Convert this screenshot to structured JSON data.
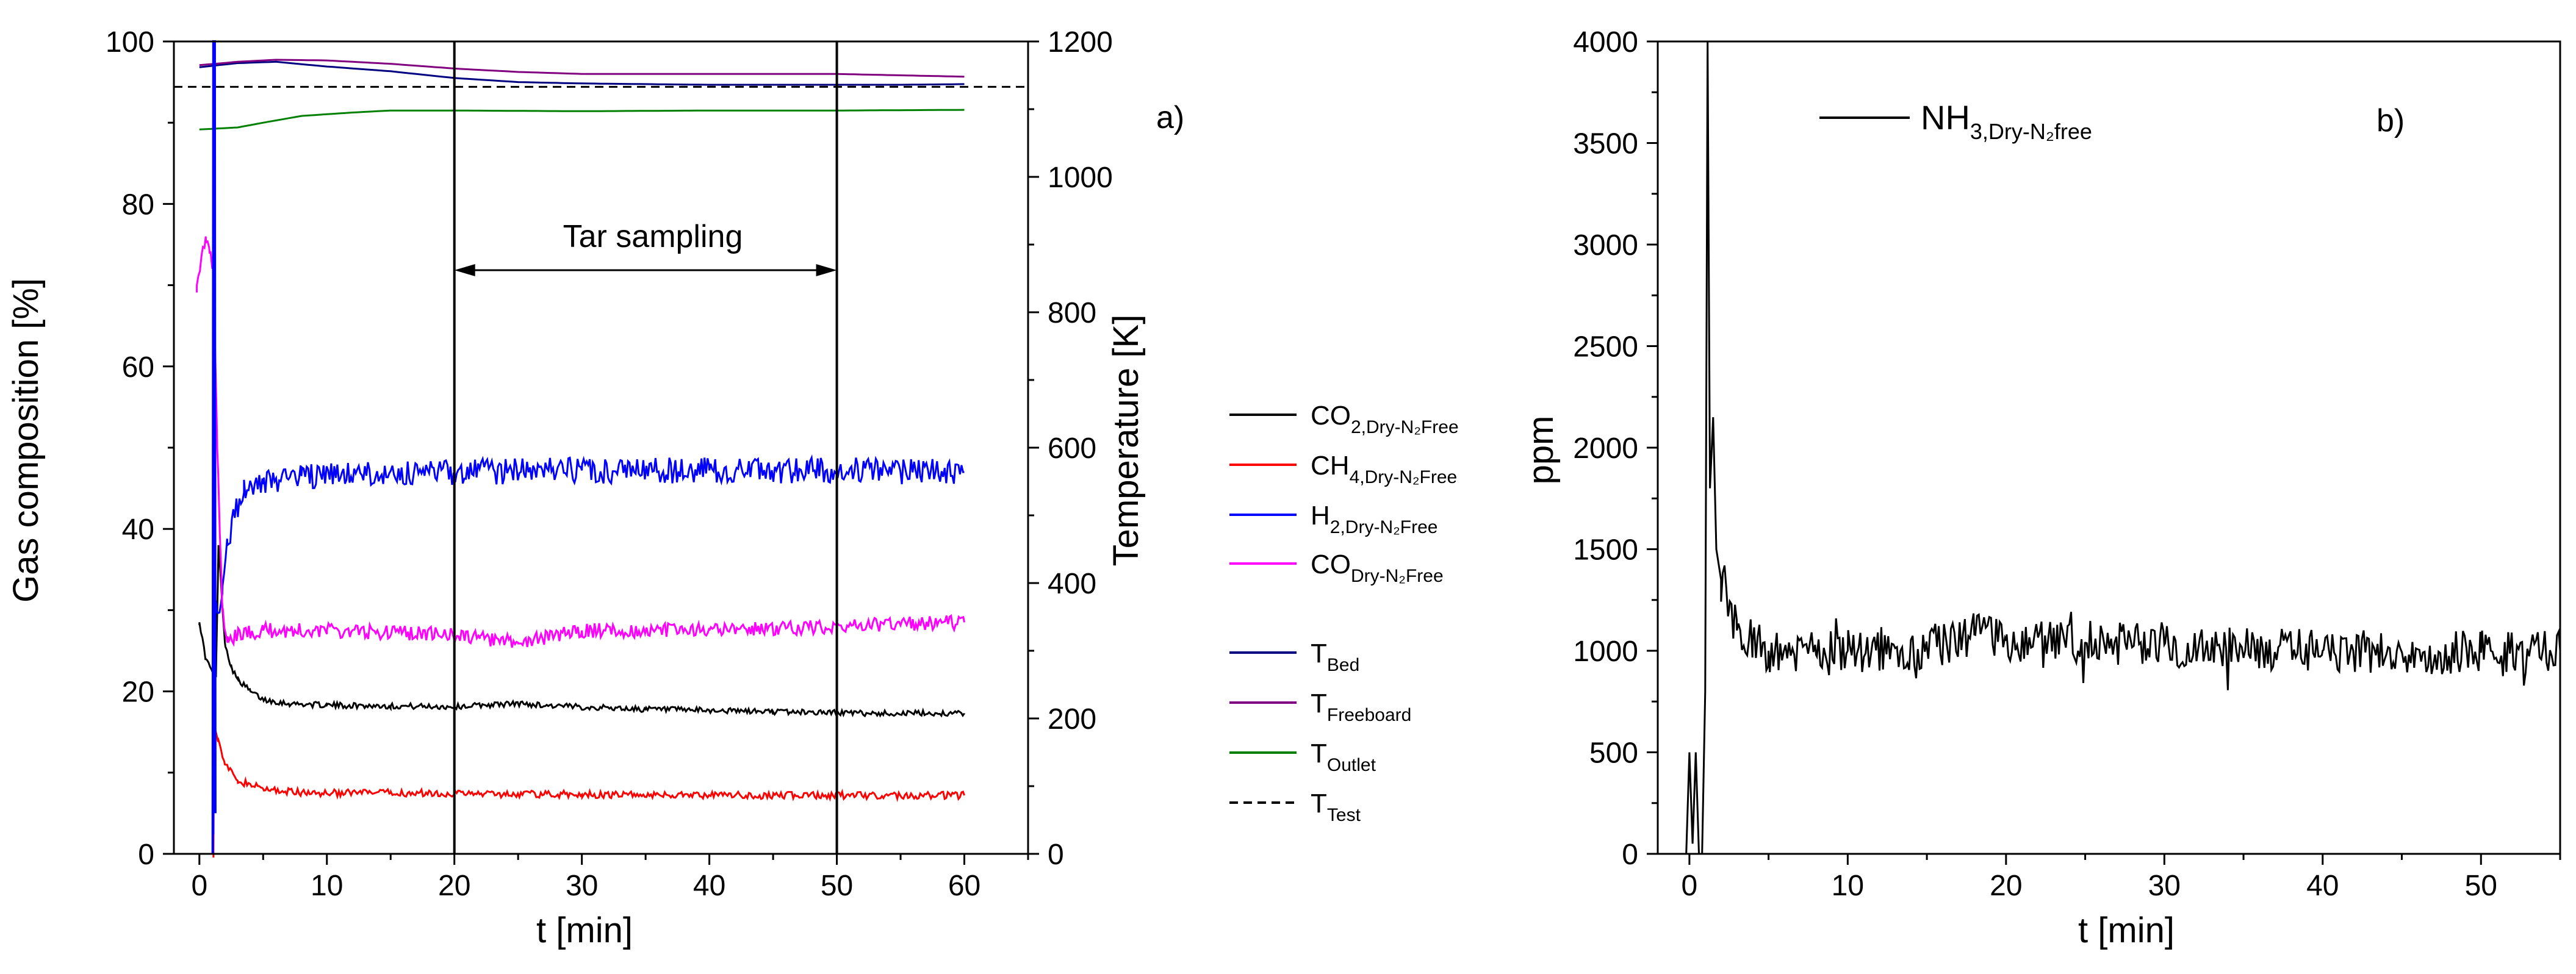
{
  "chart_data": [
    {
      "panel": "a)",
      "type": "line",
      "xlabel": "t [min]",
      "ylabel": "Gas composition [%]",
      "y2label": "Temperature [K]",
      "xlim": [
        -2,
        65
      ],
      "ylim": [
        0,
        100
      ],
      "y2lim": [
        0,
        1200
      ],
      "xticks": [
        "0",
        "10",
        "20",
        "30",
        "40",
        "50",
        "60"
      ],
      "yticks": [
        "0",
        "20",
        "40",
        "60",
        "80",
        "100"
      ],
      "y2ticks": [
        "0",
        "200",
        "400",
        "600",
        "800",
        "1000",
        "1200"
      ],
      "colors": {
        "co2": "#000000",
        "ch4": "#ff0000",
        "h2": "#0000ff",
        "co": "#ff00ff",
        "tbed": "#000080",
        "tfree": "#800080",
        "tout": "#008000",
        "ttest": "#000000"
      },
      "series": [
        {
          "key": "co2",
          "name": "CO",
          "sub": "2,Dry-N₂Free",
          "axis": "left",
          "noise": 0.35,
          "points": [
            [
              0,
              28.5
            ],
            [
              0.5,
              24
            ],
            [
              1,
              22.5
            ],
            [
              1.3,
              22
            ],
            [
              1.5,
              38
            ],
            [
              2,
              26
            ],
            [
              2.5,
              23
            ],
            [
              3,
              21.5
            ],
            [
              4,
              20
            ],
            [
              5,
              19
            ],
            [
              7,
              18.5
            ],
            [
              10,
              18.3
            ],
            [
              15,
              18.2
            ],
            [
              20,
              18.1
            ],
            [
              22,
              18.3
            ],
            [
              25,
              18.5
            ],
            [
              28,
              18.2
            ],
            [
              35,
              17.8
            ],
            [
              45,
              17.5
            ],
            [
              50,
              17.4
            ],
            [
              52,
              17.3
            ],
            [
              60,
              17.3
            ]
          ]
        },
        {
          "key": "ch4",
          "name": "CH",
          "sub": "4,Dry-N₂Free",
          "axis": "left",
          "noise": 0.45,
          "points": [
            [
              1.1,
              0
            ],
            [
              1.15,
              16
            ],
            [
              1.5,
              14
            ],
            [
              2,
              11
            ],
            [
              3,
              9
            ],
            [
              5,
              8
            ],
            [
              8,
              7.5
            ],
            [
              15,
              7.5
            ],
            [
              30,
              7.3
            ],
            [
              45,
              7.2
            ],
            [
              60,
              7.2
            ]
          ]
        },
        {
          "key": "h2",
          "name": "H",
          "sub": "2,Dry-N₂Free",
          "axis": "left",
          "noise": 1.6,
          "points": [
            [
              1.1,
              4
            ],
            [
              1.2,
              32
            ],
            [
              1.35,
              30
            ],
            [
              1.8,
              32
            ],
            [
              2.2,
              38
            ],
            [
              2.7,
              42
            ],
            [
              3.5,
              44.5
            ],
            [
              5,
              45.5
            ],
            [
              8,
              46.5
            ],
            [
              20,
              47
            ],
            [
              30,
              47.2
            ],
            [
              40,
              47.2
            ],
            [
              50,
              47.2
            ],
            [
              60,
              47
            ]
          ]
        },
        {
          "key": "co",
          "name": "CO",
          "sub": "Dry-N₂Free",
          "axis": "left",
          "noise": 0.9,
          "points": [
            [
              -0.2,
              70
            ],
            [
              0.2,
              74
            ],
            [
              0.5,
              76
            ],
            [
              0.8,
              74
            ],
            [
              1.1,
              72
            ],
            [
              1.4,
              50
            ],
            [
              1.8,
              30
            ],
            [
              2.2,
              26
            ],
            [
              3,
              27
            ],
            [
              5,
              27.5
            ],
            [
              10,
              27.5
            ],
            [
              20,
              27
            ],
            [
              22,
              26.5
            ],
            [
              25,
              26
            ],
            [
              30,
              27.5
            ],
            [
              40,
              27.5
            ],
            [
              50,
              28
            ],
            [
              60,
              28.5
            ]
          ]
        },
        {
          "key": "tbed",
          "name": "T",
          "sub": "Bed",
          "axis": "right",
          "noise": 0,
          "points": [
            [
              0,
              1162
            ],
            [
              3,
              1168
            ],
            [
              6,
              1170
            ],
            [
              10,
              1163
            ],
            [
              15,
              1156
            ],
            [
              20,
              1146
            ],
            [
              25,
              1140
            ],
            [
              30,
              1138
            ],
            [
              40,
              1136
            ],
            [
              50,
              1136
            ],
            [
              55,
              1136
            ],
            [
              60,
              1137
            ]
          ]
        },
        {
          "key": "tfree",
          "name": "T",
          "sub": "Freeboard",
          "axis": "right",
          "noise": 0,
          "points": [
            [
              0,
              1165
            ],
            [
              3,
              1170
            ],
            [
              6,
              1173
            ],
            [
              10,
              1172
            ],
            [
              15,
              1167
            ],
            [
              20,
              1160
            ],
            [
              25,
              1155
            ],
            [
              30,
              1152
            ],
            [
              40,
              1152
            ],
            [
              50,
              1152
            ],
            [
              55,
              1150
            ],
            [
              60,
              1148
            ]
          ]
        },
        {
          "key": "tout",
          "name": "T",
          "sub": "Outlet",
          "axis": "right",
          "noise": 0,
          "points": [
            [
              0,
              1070
            ],
            [
              3,
              1073
            ],
            [
              5,
              1080
            ],
            [
              8,
              1090
            ],
            [
              12,
              1095
            ],
            [
              15,
              1098
            ],
            [
              20,
              1098
            ],
            [
              30,
              1097
            ],
            [
              40,
              1098
            ],
            [
              50,
              1098
            ],
            [
              60,
              1099
            ]
          ]
        },
        {
          "key": "ttest",
          "name": "T",
          "sub": "Test",
          "axis": "right",
          "dashed": true,
          "noise": 0,
          "points": [
            [
              -2,
              1133
            ],
            [
              65,
              1133
            ]
          ]
        }
      ],
      "spike_h2": [
        [
          1.05,
          0
        ],
        [
          1.1,
          100
        ],
        [
          1.2,
          100
        ],
        [
          1.25,
          5
        ]
      ],
      "vlines": [
        20,
        50
      ],
      "annotation": {
        "text": "Tar sampling",
        "from": 20,
        "to": 50
      }
    },
    {
      "panel": "b)",
      "type": "line",
      "xlabel": "t [min]",
      "ylabel": "ppm",
      "xlim": [
        -2,
        55
      ],
      "ylim": [
        0,
        4000
      ],
      "xticks": [
        "0",
        "10",
        "20",
        "30",
        "40",
        "50"
      ],
      "yticks": [
        "0",
        "500",
        "1000",
        "1500",
        "2000",
        "2500",
        "3000",
        "3500",
        "4000"
      ],
      "series": [
        {
          "name": "NH",
          "sub": "3,Dry-N₂free",
          "color": "#000000",
          "points": [
            [
              -0.2,
              0
            ],
            [
              0,
              500
            ],
            [
              0.2,
              50
            ],
            [
              0.4,
              500
            ],
            [
              0.6,
              0
            ],
            [
              0.8,
              0
            ],
            [
              1,
              800
            ],
            [
              1.15,
              4000
            ],
            [
              1.3,
              1800
            ],
            [
              1.5,
              2150
            ],
            [
              1.7,
              1500
            ],
            [
              2,
              1350
            ],
            [
              2.5,
              1200
            ],
            [
              3,
              1100
            ],
            [
              4,
              1050
            ],
            [
              5,
              1000
            ],
            [
              8,
              980
            ],
            [
              10,
              1000
            ],
            [
              15,
              1020
            ],
            [
              18,
              1080
            ],
            [
              20,
              1050
            ],
            [
              25,
              1040
            ],
            [
              30,
              1030
            ],
            [
              40,
              1000
            ],
            [
              50,
              990
            ],
            [
              55,
              1000
            ]
          ]
        }
      ],
      "noise": 110
    }
  ]
}
